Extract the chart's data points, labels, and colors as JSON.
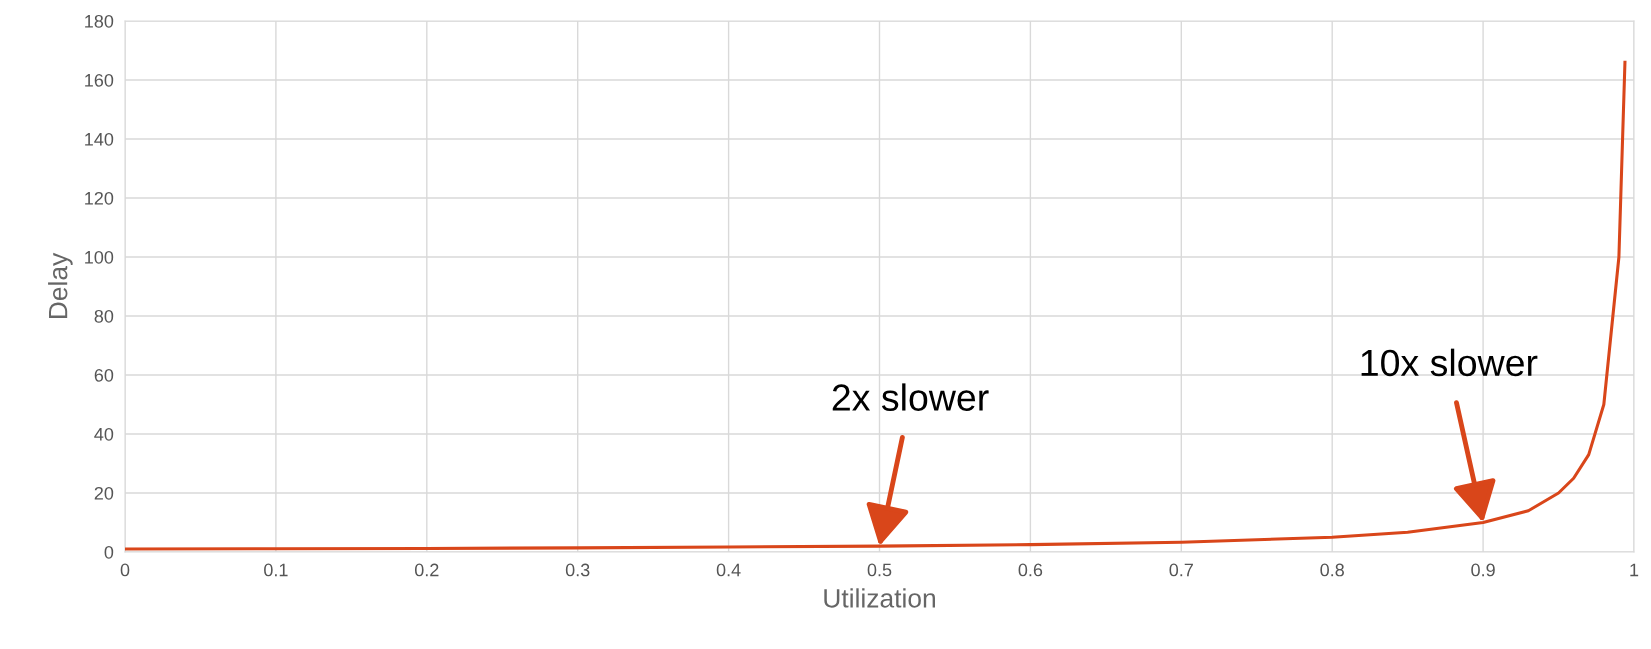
{
  "chart_data": {
    "type": "line",
    "xlabel": "Utilization",
    "ylabel": "Delay",
    "x": [
      0,
      0.1,
      0.2,
      0.3,
      0.4,
      0.5,
      0.6,
      0.7,
      0.8,
      0.85,
      0.9,
      0.93,
      0.95,
      0.96,
      0.97,
      0.98,
      0.99,
      0.994
    ],
    "series": [
      {
        "color": "#d9461a",
        "values": [
          1,
          1.1,
          1.2,
          1.4,
          1.7,
          2,
          2.5,
          3.3,
          5,
          6.7,
          10,
          14,
          20,
          25,
          33,
          50,
          100,
          166
        ]
      }
    ],
    "xlim": [
      0,
      1
    ],
    "xticks": [
      0,
      0.1,
      0.2,
      0.3,
      0.4,
      0.5,
      0.6,
      0.7,
      0.8,
      0.9,
      1
    ],
    "ylim": [
      0,
      180
    ],
    "yticks": [
      0,
      20,
      40,
      60,
      80,
      100,
      120,
      140,
      160,
      180
    ],
    "grid": true,
    "marker": "none",
    "line_style": "solid",
    "annotations": [
      {
        "text": "2x slower",
        "x": 0.5,
        "y": 2
      },
      {
        "text": "10x slower",
        "x": 0.9,
        "y": 10
      }
    ]
  }
}
